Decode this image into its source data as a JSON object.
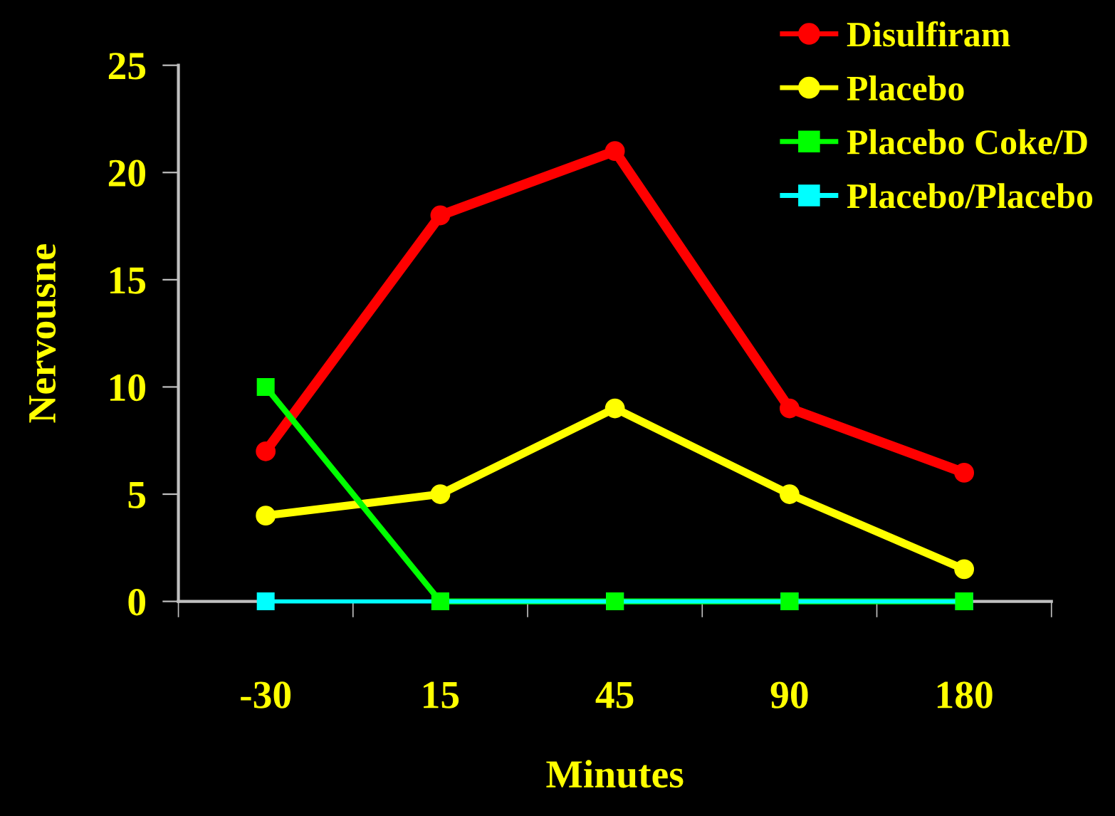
{
  "chart_data": {
    "type": "line",
    "xlabel": "Minutes",
    "ylabel": "Nervousne",
    "categories": [
      "-30",
      "15",
      "45",
      "90",
      "180"
    ],
    "series": [
      {
        "name": "Disulfiram",
        "color": "#ff0000",
        "marker": "circle",
        "values": [
          7,
          18,
          21,
          9,
          6
        ]
      },
      {
        "name": "Placebo",
        "color": "#ffff00",
        "marker": "circle",
        "values": [
          4,
          5,
          9,
          5,
          1.5
        ]
      },
      {
        "name": "Placebo Coke/D",
        "color": "#00ff00",
        "marker": "square",
        "values": [
          10,
          0,
          0,
          0,
          0
        ]
      },
      {
        "name": "Placebo/Placebo",
        "color": "#00ffff",
        "marker": "square",
        "values": [
          0,
          0,
          0,
          0,
          0
        ]
      }
    ],
    "ylim": [
      0,
      25
    ],
    "yticks": [
      0,
      5,
      10,
      15,
      20,
      25
    ],
    "grid": false,
    "legend": "top right",
    "line_style": "solid"
  }
}
